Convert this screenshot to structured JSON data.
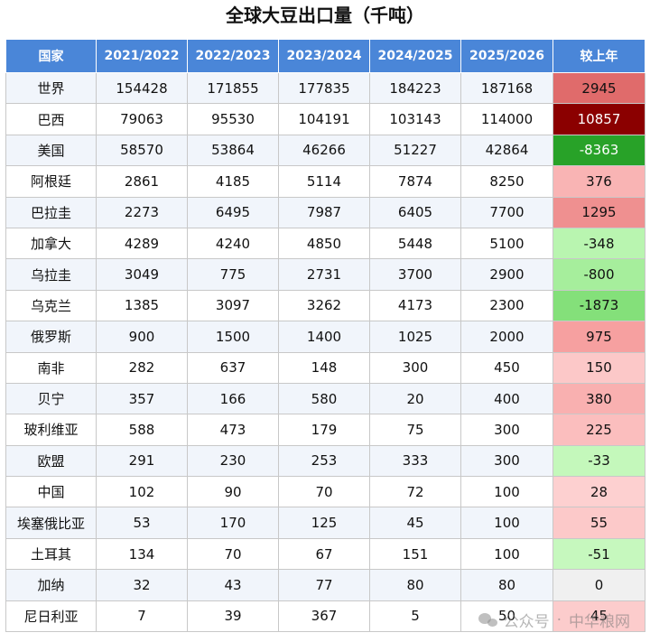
{
  "chart_data": {
    "type": "table",
    "title": "全球大豆出口量（千吨）",
    "columns": [
      "国家",
      "2021/2022",
      "2022/2023",
      "2023/2024",
      "2024/2025",
      "2025/2026",
      "较上年"
    ],
    "rows": [
      {
        "country": "世界",
        "values": [
          "154428",
          "171855",
          "177835",
          "184223",
          "187168"
        ],
        "change": "2945"
      },
      {
        "country": "巴西",
        "values": [
          "79063",
          "95530",
          "104191",
          "103143",
          "114000"
        ],
        "change": "10857"
      },
      {
        "country": "美国",
        "values": [
          "58570",
          "53864",
          "46266",
          "51227",
          "42864"
        ],
        "change": "-8363"
      },
      {
        "country": "阿根廷",
        "values": [
          "2861",
          "4185",
          "5114",
          "7874",
          "8250"
        ],
        "change": "376"
      },
      {
        "country": "巴拉圭",
        "values": [
          "2273",
          "6495",
          "7987",
          "6405",
          "7700"
        ],
        "change": "1295"
      },
      {
        "country": "加拿大",
        "values": [
          "4289",
          "4240",
          "4850",
          "5448",
          "5100"
        ],
        "change": "-348"
      },
      {
        "country": "乌拉圭",
        "values": [
          "3049",
          "775",
          "2731",
          "3700",
          "2900"
        ],
        "change": "-800"
      },
      {
        "country": "乌克兰",
        "values": [
          "1385",
          "3097",
          "3262",
          "4173",
          "2300"
        ],
        "change": "-1873"
      },
      {
        "country": "俄罗斯",
        "values": [
          "900",
          "1500",
          "1400",
          "1025",
          "2000"
        ],
        "change": "975"
      },
      {
        "country": "南非",
        "values": [
          "282",
          "637",
          "148",
          "300",
          "450"
        ],
        "change": "150"
      },
      {
        "country": "贝宁",
        "values": [
          "357",
          "166",
          "580",
          "20",
          "400"
        ],
        "change": "380"
      },
      {
        "country": "玻利维亚",
        "values": [
          "588",
          "473",
          "179",
          "75",
          "300"
        ],
        "change": "225"
      },
      {
        "country": "欧盟",
        "values": [
          "291",
          "230",
          "253",
          "333",
          "300"
        ],
        "change": "-33"
      },
      {
        "country": "中国",
        "values": [
          "102",
          "90",
          "70",
          "72",
          "100"
        ],
        "change": "28"
      },
      {
        "country": "埃塞俄比亚",
        "values": [
          "53",
          "170",
          "125",
          "45",
          "100"
        ],
        "change": "55"
      },
      {
        "country": "土耳其",
        "values": [
          "134",
          "70",
          "67",
          "151",
          "100"
        ],
        "change": "-51"
      },
      {
        "country": "加纳",
        "values": [
          "32",
          "43",
          "77",
          "80",
          "80"
        ],
        "change": "0"
      },
      {
        "country": "尼日利亚",
        "values": [
          "7",
          "39",
          "367",
          "5",
          "50"
        ],
        "change": "45"
      }
    ]
  },
  "colors": {
    "header_bg": "#4a86d8",
    "header_text": "#ffffff",
    "change_cell_colors": [
      "#e06b6b",
      "#8b0000",
      "#28a228",
      "#f9b4b4",
      "#ef9090",
      "#b9f5b0",
      "#a6ee9c",
      "#84e07a",
      "#f6a0a0",
      "#fcc8c8",
      "#f9b0b0",
      "#fbbebe",
      "#c4f8bb",
      "#fdd0d0",
      "#fcc9c9",
      "#c6f8be",
      "#f0f0f0",
      "#fccccc"
    ],
    "change_text_colors": [
      "#111111",
      "#ffffff",
      "#ffffff",
      "#111111",
      "#111111",
      "#111111",
      "#111111",
      "#111111",
      "#111111",
      "#111111",
      "#111111",
      "#111111",
      "#111111",
      "#111111",
      "#111111",
      "#111111",
      "#111111",
      "#111111"
    ]
  },
  "watermark": {
    "icon": "wechat-icon",
    "source": "公众号",
    "separator": "·",
    "name": "中华粮网"
  }
}
